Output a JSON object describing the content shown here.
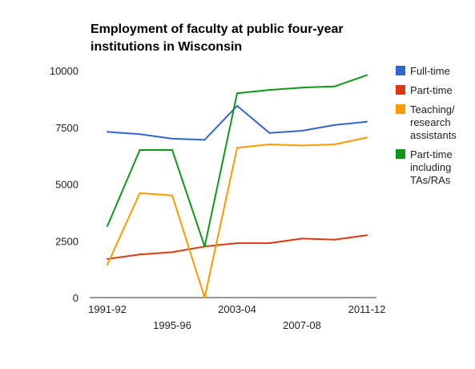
{
  "title_lines": [
    "Employment of faculty at public four-year",
    "institutions in Wisconsin"
  ],
  "chart_data": {
    "type": "line",
    "title": "Employment of faculty at public four-year institutions in Wisconsin",
    "x": [
      0,
      1,
      2,
      3,
      4,
      5,
      6,
      7,
      8
    ],
    "x_tick_labels_row1": [
      "1991-92",
      "2003-04",
      "2011-12"
    ],
    "x_tick_labels_row2": [
      "1995-96",
      "2007-08"
    ],
    "ylim": [
      0,
      10000
    ],
    "y_ticks": [
      0,
      2500,
      5000,
      7500,
      10000
    ],
    "grid": false,
    "legend_position": "right",
    "series": [
      {
        "name": "Full-time",
        "color": "#3366cc",
        "values": [
          7300,
          7200,
          7000,
          6950,
          8450,
          7250,
          7350,
          7600,
          7750
        ]
      },
      {
        "name": "Part-time",
        "color": "#dc3912",
        "values": [
          1700,
          1900,
          2000,
          2250,
          2400,
          2400,
          2600,
          2550,
          2750
        ]
      },
      {
        "name": "Teaching/ research assistants",
        "color": "#ff9900",
        "values": [
          1450,
          4600,
          4500,
          0,
          6600,
          6750,
          6700,
          6750,
          7050
        ]
      },
      {
        "name": "Part-time including TAs/RAs",
        "color": "#109618",
        "values": [
          3150,
          6500,
          6500,
          2250,
          9000,
          9150,
          9250,
          9300,
          9800
        ]
      }
    ],
    "legend_lines": [
      [
        "Full-time"
      ],
      [
        "Part-time"
      ],
      [
        "Teaching/",
        "research",
        "assistants"
      ],
      [
        "Part-time",
        "including",
        "TAs/RAs"
      ]
    ]
  }
}
